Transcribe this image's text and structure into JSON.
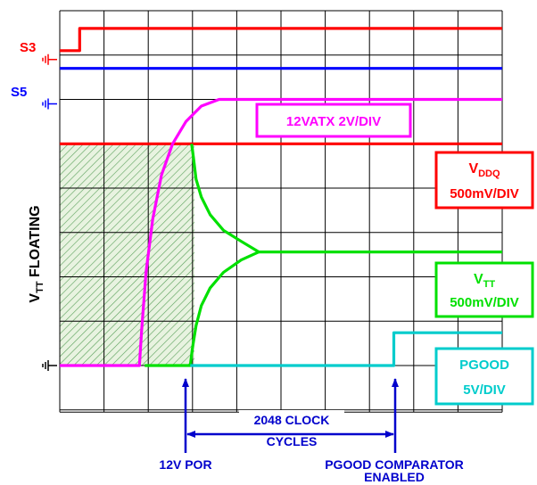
{
  "chart_data": {
    "type": "line",
    "x_unit": "divisions",
    "y_unit": "divisions",
    "xlim": [
      0,
      10
    ],
    "ylim": [
      0,
      8
    ],
    "grid": true,
    "signals": [
      {
        "key": "s3",
        "label": "S3",
        "color": "#ff0000",
        "ground_div": 6.9,
        "points": [
          [
            0,
            7.1
          ],
          [
            0.45,
            7.1
          ],
          [
            0.45,
            7.6
          ],
          [
            10,
            7.6
          ]
        ]
      },
      {
        "key": "s5",
        "label": "S5",
        "color": "#0000ff",
        "ground_div": 5.9,
        "points": [
          [
            0,
            6.7
          ],
          [
            10,
            6.7
          ]
        ]
      },
      {
        "key": "v12",
        "label": "12VATX 2V/DIV",
        "color": "#ff00ff",
        "points": [
          [
            0,
            0
          ],
          [
            1.8,
            0
          ],
          [
            1.85,
            0.8
          ],
          [
            1.95,
            2.1
          ],
          [
            2.1,
            3.3
          ],
          [
            2.3,
            4.3
          ],
          [
            2.55,
            5.0
          ],
          [
            2.85,
            5.5
          ],
          [
            3.2,
            5.85
          ],
          [
            3.6,
            6.0
          ],
          [
            10,
            6.0
          ]
        ]
      },
      {
        "key": "vddq",
        "label_main": "V",
        "label_sub": "DDQ",
        "label_scale": "500mV/DIV",
        "color": "#ff0000",
        "points": [
          [
            0,
            5.0
          ],
          [
            10,
            5.0
          ]
        ]
      },
      {
        "key": "vtt_upper",
        "label_main": "V",
        "label_sub": "TT",
        "label_scale": "500mV/DIV",
        "color": "#00e000",
        "points": [
          [
            2.98,
            5.0
          ],
          [
            3.02,
            4.7
          ],
          [
            3.08,
            4.2
          ],
          [
            3.2,
            3.8
          ],
          [
            3.4,
            3.4
          ],
          [
            3.7,
            3.05
          ],
          [
            4.1,
            2.8
          ],
          [
            4.5,
            2.56
          ],
          [
            10,
            2.56
          ]
        ]
      },
      {
        "key": "vtt_lower",
        "color": "#00e000",
        "points": [
          [
            1.92,
            0
          ],
          [
            2.95,
            0
          ],
          [
            3.0,
            0.4
          ],
          [
            3.08,
            0.9
          ],
          [
            3.2,
            1.35
          ],
          [
            3.4,
            1.75
          ],
          [
            3.7,
            2.1
          ],
          [
            4.1,
            2.38
          ],
          [
            4.5,
            2.56
          ]
        ]
      },
      {
        "key": "pgood",
        "label_main": "PGOOD",
        "label_scale": "5V/DIV",
        "color": "#00cccc",
        "ground_div": 0,
        "points": [
          [
            2.95,
            0
          ],
          [
            7.55,
            0
          ],
          [
            7.55,
            0.74
          ],
          [
            10,
            0.74
          ]
        ]
      }
    ],
    "annotations": {
      "floating_main": "V",
      "floating_sub": "TT",
      "floating_rest": " FLOATING",
      "interval_line1": "2048 CLOCK",
      "interval_line2": "CYCLES",
      "por_label": "12V POR",
      "pgood_comp_line1": "PGOOD COMPARATOR",
      "pgood_comp_line2": "ENABLED"
    }
  }
}
